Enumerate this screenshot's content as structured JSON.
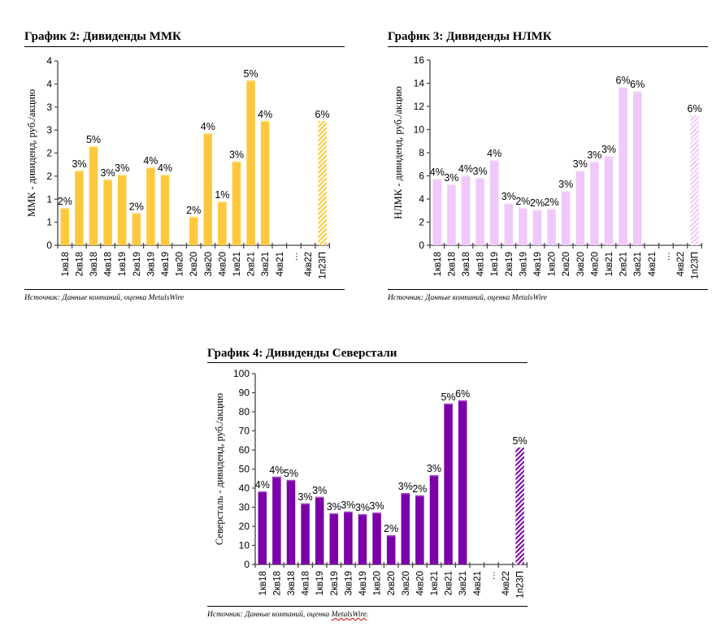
{
  "page": {
    "charts_order": [
      "mmk",
      "nlmk",
      "severstal"
    ]
  },
  "chart_data": [
    {
      "id": "mmk",
      "type": "bar",
      "title": "График 2: Дивиденды ММК",
      "xlabel": "",
      "ylabel": "ММК - дивиденд, руб./акцию",
      "ylim": [
        0,
        4
      ],
      "ytick_values": [
        0,
        0.5,
        1,
        1.5,
        2,
        2.5,
        3,
        3.5,
        4
      ],
      "ytick_labels": [
        "0",
        "1",
        "1",
        "2",
        "2",
        "3",
        "3",
        "4",
        "4"
      ],
      "grid": false,
      "legend": "none",
      "categories": [
        "1кв18",
        "2кв18",
        "3кв18",
        "4кв18",
        "1кв19",
        "2кв19",
        "3кв19",
        "4кв19",
        "1кв20",
        "2кв20",
        "3кв20",
        "4кв20",
        "1кв21",
        "2кв21",
        "3кв21",
        "4кв21",
        "…",
        "4кв22",
        "1п23П"
      ],
      "values": [
        0.81,
        1.62,
        2.15,
        1.43,
        1.53,
        0.7,
        1.69,
        1.53,
        0,
        0.62,
        2.43,
        0.95,
        1.82,
        3.58,
        2.7,
        null,
        null,
        null,
        2.7
      ],
      "data_labels": [
        "2%",
        "3%",
        "5%",
        "3%",
        "3%",
        "2%",
        "4%",
        "4%",
        "",
        "2%",
        "4%",
        "1%",
        "3%",
        "5%",
        "4%",
        "",
        "",
        "",
        "6%"
      ],
      "forecast": [
        false,
        false,
        false,
        false,
        false,
        false,
        false,
        false,
        false,
        false,
        false,
        false,
        false,
        false,
        false,
        false,
        false,
        false,
        true
      ],
      "color": "#ffc83d",
      "highlight_color": "#ffe08a",
      "source": "Источник: Данные компаний, оценка MetalsWire"
    },
    {
      "id": "nlmk",
      "type": "bar",
      "title": "График 3: Дивиденды НЛМК",
      "xlabel": "",
      "ylabel": "НЛМК - дивиденд, руб./акцию",
      "ylim": [
        0,
        16
      ],
      "ytick_values": [
        0,
        2,
        4,
        6,
        8,
        10,
        12,
        14,
        16
      ],
      "ytick_labels": [
        "0",
        "2",
        "4",
        "6",
        "8",
        "10",
        "12",
        "14",
        "16"
      ],
      "grid": false,
      "legend": "none",
      "categories": [
        "1кв18",
        "2кв18",
        "3кв18",
        "4кв18",
        "1кв19",
        "2кв19",
        "3кв19",
        "4кв19",
        "1кв20",
        "2кв20",
        "3кв20",
        "4кв20",
        "1кв21",
        "2кв21",
        "3кв21",
        "4кв21",
        "…",
        "4кв22",
        "1п23П"
      ],
      "values": [
        5.75,
        5.26,
        6.04,
        5.82,
        7.37,
        3.65,
        3.23,
        3.09,
        3.16,
        4.7,
        6.46,
        7.23,
        7.72,
        13.68,
        13.33,
        null,
        null,
        null,
        11.23
      ],
      "data_labels": [
        "4%",
        "3%",
        "4%",
        "3%",
        "4%",
        "3%",
        "2%",
        "2%",
        "2%",
        "3%",
        "3%",
        "3%",
        "3%",
        "6%",
        "6%",
        "",
        "",
        "",
        "6%"
      ],
      "forecast": [
        false,
        false,
        false,
        false,
        false,
        false,
        false,
        false,
        false,
        false,
        false,
        false,
        false,
        false,
        false,
        false,
        false,
        false,
        true
      ],
      "color": "#f0c8fa",
      "highlight_color": "#f8e4fd",
      "source": "Источник: Данные компаний, оценка MetalsWire"
    },
    {
      "id": "severstal",
      "type": "bar",
      "title": "График 4: Дивиденды Северстали",
      "xlabel": "",
      "ylabel": "Северсталь - дивиденд, руб./акцию",
      "ylim": [
        0,
        100
      ],
      "ytick_values": [
        0,
        10,
        20,
        30,
        40,
        50,
        60,
        70,
        80,
        90,
        100
      ],
      "ytick_labels": [
        "0",
        "10",
        "20",
        "30",
        "40",
        "50",
        "60",
        "70",
        "80",
        "90",
        "100"
      ],
      "grid": false,
      "legend": "none",
      "categories": [
        "1кв18",
        "2кв18",
        "3кв18",
        "4кв18",
        "1кв19",
        "2кв19",
        "3кв19",
        "4кв19",
        "1кв20",
        "2кв20",
        "3кв20",
        "4кв20",
        "1кв21",
        "2кв21",
        "3кв21",
        "4кв21",
        "…",
        "4кв22",
        "1п23П"
      ],
      "values": [
        38.3,
        46.0,
        44.3,
        32.0,
        35.4,
        26.8,
        27.7,
        26.4,
        27.2,
        15.3,
        37.4,
        36.2,
        46.8,
        84.3,
        86.0,
        null,
        null,
        null,
        61.3
      ],
      "data_labels": [
        "4%",
        "4%",
        "5%",
        "3%",
        "3%",
        "3%",
        "3%",
        "3%",
        "3%",
        "2%",
        "3%",
        "2%",
        "3%",
        "5%",
        "6%",
        "",
        "",
        "",
        "5%"
      ],
      "forecast": [
        false,
        false,
        false,
        false,
        false,
        false,
        false,
        false,
        false,
        false,
        false,
        false,
        false,
        false,
        false,
        false,
        false,
        false,
        true
      ],
      "color": "#7b00a8",
      "highlight_color": "#a24cc4",
      "source_prefix": "Источник: Данные компаний, оценка ",
      "source_brand": "MetalsWire",
      "source_suffix": "."
    }
  ]
}
